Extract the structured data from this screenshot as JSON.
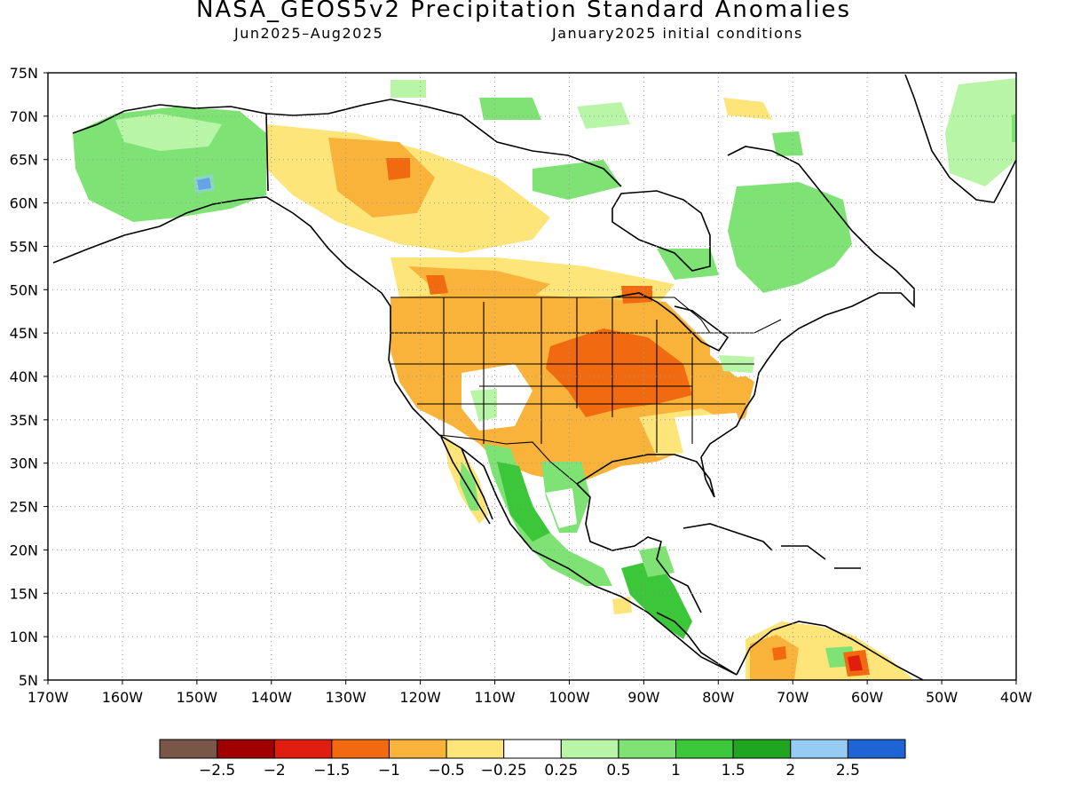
{
  "title": "NASA_GEOS5v2 Precipitation Standard Anomalies",
  "subtitle_period": "Jun2025–Aug2025",
  "subtitle_init": "January2025 initial conditions",
  "map": {
    "lat_labels": [
      "75N",
      "70N",
      "65N",
      "60N",
      "55N",
      "50N",
      "45N",
      "40N",
      "35N",
      "30N",
      "25N",
      "20N",
      "15N",
      "10N",
      "5N"
    ],
    "lon_labels": [
      "170W",
      "160W",
      "150W",
      "140W",
      "130W",
      "120W",
      "110W",
      "100W",
      "90W",
      "80W",
      "70W",
      "60W",
      "50W",
      "40W"
    ],
    "lat_range": [
      5,
      75
    ],
    "lon_range": [
      -170,
      -40
    ],
    "grid": "dotted"
  },
  "colorbar": {
    "colors": [
      "#7a5648",
      "#a00000",
      "#e01e10",
      "#f26a0f",
      "#f9b33a",
      "#fde57a",
      "#ffffff",
      "#b8f5a6",
      "#7ee374",
      "#3cc63a",
      "#1fa51f",
      "#96ccf4",
      "#1f64d4"
    ],
    "labels": [
      "-2.5",
      "-2",
      "-1.5",
      "-1",
      "-0.5",
      "-0.25",
      "0.25",
      "0.5",
      "1",
      "1.5",
      "2",
      "2.5"
    ]
  },
  "anomaly_regions": [
    {
      "category": "-1.5 to -1",
      "color": "#f26a0f",
      "area": "Central US (Iowa / Missouri / Illinois)"
    },
    {
      "category": "-1.5 to -1",
      "color": "#f26a0f",
      "area": "Northwestern Canada"
    },
    {
      "category": "-1 to -0.5",
      "color": "#f9b33a",
      "area": "Western and Central US"
    },
    {
      "category": "-0.5 to -0.25",
      "color": "#fde57a",
      "area": "Canadian Prairies"
    },
    {
      "category": "0.5 to 1",
      "color": "#7ee374",
      "area": "Alaska"
    },
    {
      "category": "0.5 to 1",
      "color": "#7ee374",
      "area": "Quebec / Labrador"
    },
    {
      "category": "1 to 1.5",
      "color": "#3cc63a",
      "area": "Western Mexico and Central America"
    },
    {
      "category": "0.25 to 0.5",
      "color": "#b8f5a6",
      "area": "Greenland coast"
    },
    {
      "category": "-2 to -1.5",
      "color": "#e01e10",
      "area": "Northern South America"
    },
    {
      "category": "2.5+",
      "color": "#1f64d4",
      "area": "South-central Alaska"
    }
  ]
}
